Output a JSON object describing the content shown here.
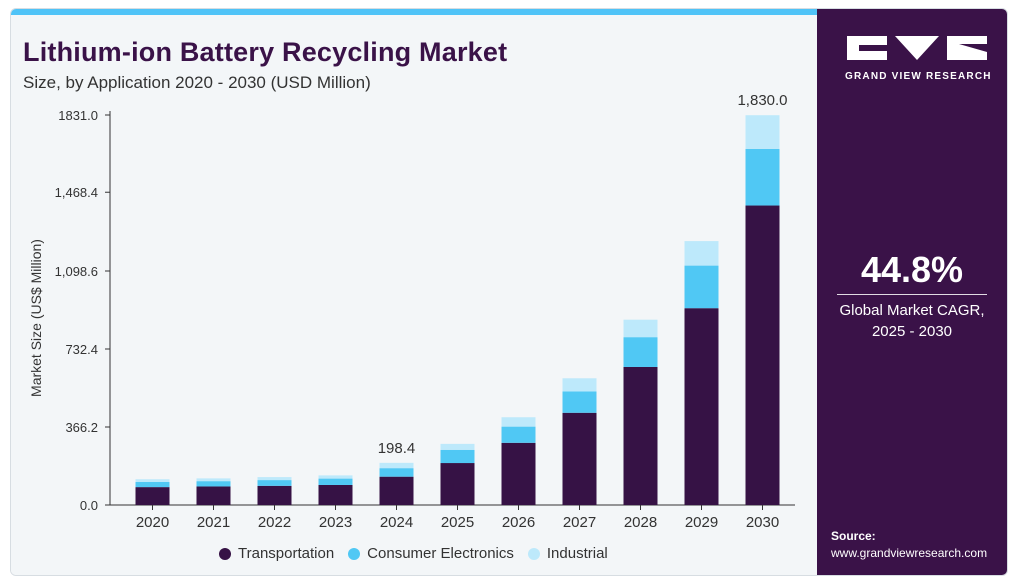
{
  "header": {
    "title": "Lithium-ion Battery Recycling Market",
    "subtitle": "Size, by Application 2020 - 2030 (USD Million)"
  },
  "sidebar": {
    "brand": "GRAND VIEW RESEARCH",
    "cagr_value": "44.8%",
    "cagr_label_line1": "Global Market CAGR,",
    "cagr_label_line2": "2025 - 2030",
    "source_label": "Source:",
    "source_url": "www.grandviewresearch.com"
  },
  "colors": {
    "transportation": "#361245",
    "consumer_electronics": "#50c8f4",
    "industrial": "#bde9fb",
    "sidebar_bg": "#3a1248",
    "accent": "#4fc3f7"
  },
  "chart_data": {
    "type": "bar",
    "stacked": true,
    "title": "Lithium-ion Battery Recycling Market",
    "subtitle": "Size, by Application 2020 - 2030 (USD Million)",
    "ylabel": "Market Size (US$ Million)",
    "xlabel": "",
    "ylim": [
      0,
      1831.0
    ],
    "yticks": [
      "0.0",
      "366.2",
      "732.4",
      "1,098.6",
      "1,468.4",
      "1831.0"
    ],
    "ytick_values": [
      0,
      366.2,
      732.4,
      1098.6,
      1468.4,
      1831.0
    ],
    "categories": [
      "2020",
      "2021",
      "2022",
      "2023",
      "2024",
      "2025",
      "2026",
      "2027",
      "2028",
      "2029",
      "2030"
    ],
    "series": [
      {
        "name": "Transportation",
        "values": [
          84,
          87,
          90,
          94,
          133,
          197,
          292,
          433,
          648,
          924,
          1406
        ]
      },
      {
        "name": "Consumer Electronics",
        "values": [
          24,
          25,
          27,
          30,
          40,
          62,
          76,
          100,
          140,
          200,
          266
        ]
      },
      {
        "name": "Industrial",
        "values": [
          13,
          13,
          14,
          15,
          25,
          28,
          44,
          62,
          82,
          115,
          158
        ]
      }
    ],
    "annotations": [
      {
        "category": "2024",
        "text": "198.4"
      },
      {
        "category": "2030",
        "text": "1,830.0"
      }
    ],
    "legend_position": "bottom",
    "grid": false
  }
}
